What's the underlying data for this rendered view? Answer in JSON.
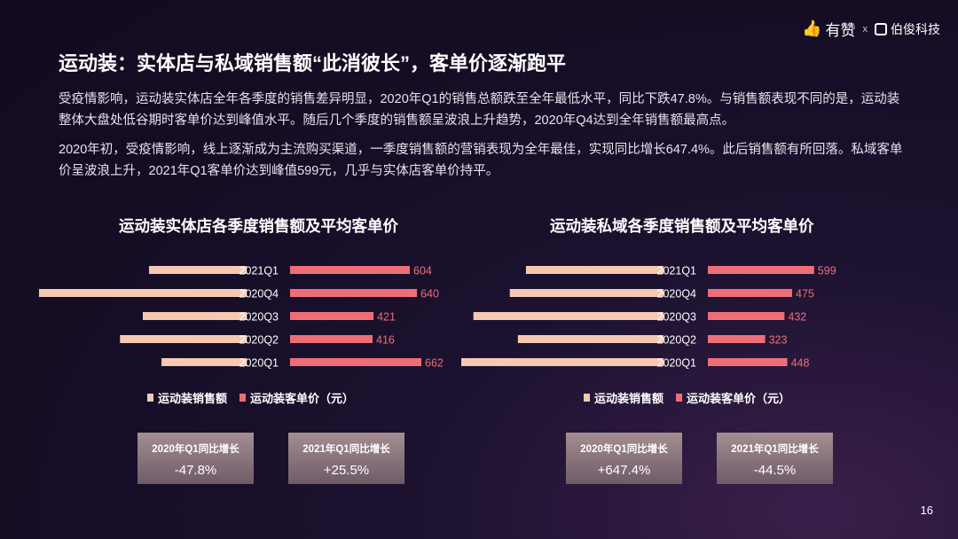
{
  "brand": {
    "name1": "有赞",
    "sep": "x",
    "name2": "伯俊科技"
  },
  "title": "运动装：实体店与私域销售额“此消彼长”，客单价逐渐跑平",
  "paragraphs": [
    "受疫情影响，运动装实体店全年各季度的销售差异明显，2020年Q1的销售总额跌至全年最低水平，同比下跌47.8%。与销售额表现不同的是，运动装整体大盘处低谷期时客单价达到峰值水平。随后几个季度的销售额呈波浪上升趋势，2020年Q4达到全年销售额最高点。",
    "2020年初，受疫情影响，线上逐渐成为主流购买渠道，一季度销售额的营销表现为全年最佳，实现同比增长647.4%。此后销售额有所回落。私域客单价呈波浪上升，2021年Q1客单价达到峰值599元，几乎与实体店客单价持平。"
  ],
  "colors": {
    "sales": "#f6c8b2",
    "price": "#ee6e78",
    "legend_sales": "#f6c8b2",
    "legend_price": "#ee6e78"
  },
  "chart_data": [
    {
      "type": "bar",
      "title": "运动装实体店各季度销售额及平均客单价",
      "categories": [
        "2021Q1",
        "2020Q4",
        "2020Q3",
        "2020Q2",
        "2020Q1"
      ],
      "series": [
        {
          "name": "运动装销售额",
          "values": [
            0.47,
            1.0,
            0.5,
            0.61,
            0.41
          ],
          "direction": "left"
        },
        {
          "name": "运动装客单价（元）",
          "values": [
            604,
            640,
            421,
            416,
            662
          ],
          "direction": "right"
        }
      ],
      "legend": [
        "运动装销售额",
        "运动装客单价（元）"
      ],
      "cards": [
        {
          "label": "2020年Q1同比增长",
          "value": "-47.8%"
        },
        {
          "label": "2021年Q1同比增长",
          "value": "+25.5%"
        }
      ]
    },
    {
      "type": "bar",
      "title": "运动装私域各季度销售额及平均客单价",
      "categories": [
        "2021Q1",
        "2020Q4",
        "2020Q3",
        "2020Q2",
        "2020Q1"
      ],
      "series": [
        {
          "name": "运动装销售额",
          "values": [
            0.68,
            0.76,
            0.94,
            0.72,
            1.0
          ],
          "direction": "left"
        },
        {
          "name": "运动装客单价（元）",
          "values": [
            599,
            475,
            432,
            323,
            448
          ],
          "direction": "right"
        }
      ],
      "legend": [
        "运动装销售额",
        "运动装客单价（元）"
      ],
      "cards": [
        {
          "label": "2020年Q1同比增长",
          "value": "+647.4%"
        },
        {
          "label": "2021年Q1同比增长",
          "value": "-44.5%"
        }
      ]
    }
  ],
  "page_number": "16"
}
